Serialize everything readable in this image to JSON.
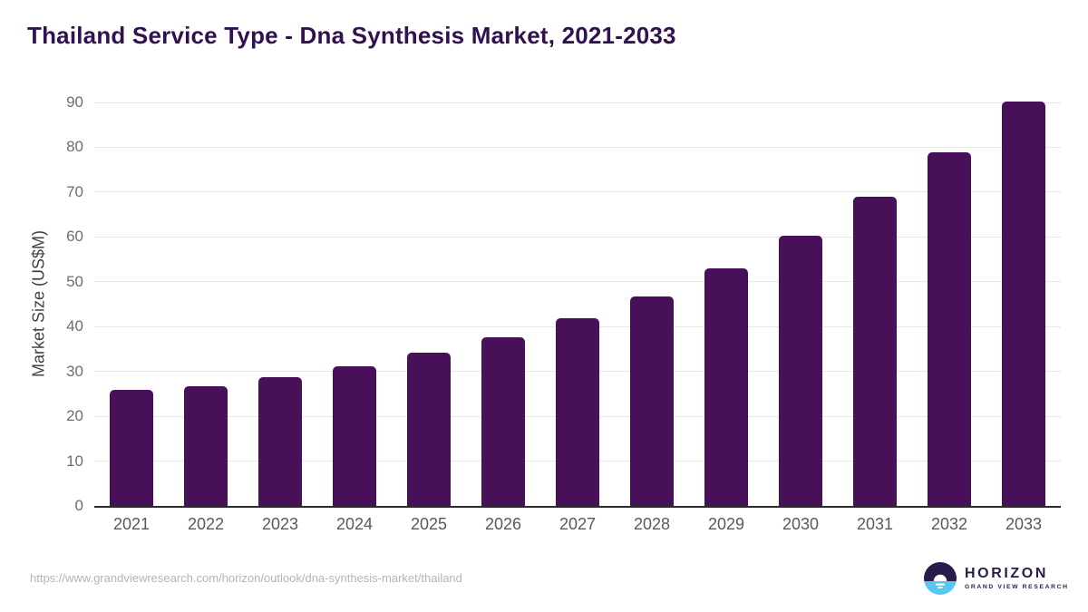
{
  "title": "Thailand Service Type - Dna Synthesis Market, 2021-2033",
  "source_url": "https://www.grandviewresearch.com/horizon/outlook/dna-synthesis-market/thailand",
  "branding": {
    "name": "HORIZON",
    "subtitle": "GRAND VIEW RESEARCH"
  },
  "colors": {
    "title": "#31114e",
    "bar": "#49105a",
    "gridline": "#e7e7e7",
    "axis_line": "#2b2b2b",
    "tick_label": "#6e6e6e",
    "axis_title": "#424242",
    "url_text": "#b4b4b4",
    "logo_purple": "#2b1b4a",
    "logo_blue": "#5bc5f2"
  },
  "chart_data": {
    "type": "bar",
    "title": "Thailand Service Type - Dna Synthesis Market, 2021-2033",
    "categories": [
      "2021",
      "2022",
      "2023",
      "2024",
      "2025",
      "2026",
      "2027",
      "2028",
      "2029",
      "2030",
      "2031",
      "2032",
      "2033"
    ],
    "values": [
      25.8,
      26.8,
      28.7,
      31.1,
      34.1,
      37.6,
      41.8,
      46.7,
      52.9,
      60.2,
      69.0,
      78.9,
      90.2
    ],
    "xlabel": "",
    "ylabel": "Market Size (US$M)",
    "ylim": [
      0,
      90
    ],
    "yticks": [
      0,
      10,
      20,
      30,
      40,
      50,
      60,
      70,
      80,
      90
    ],
    "grid": "horizontal",
    "legend_position": "none",
    "bar_color": "#49105a"
  }
}
